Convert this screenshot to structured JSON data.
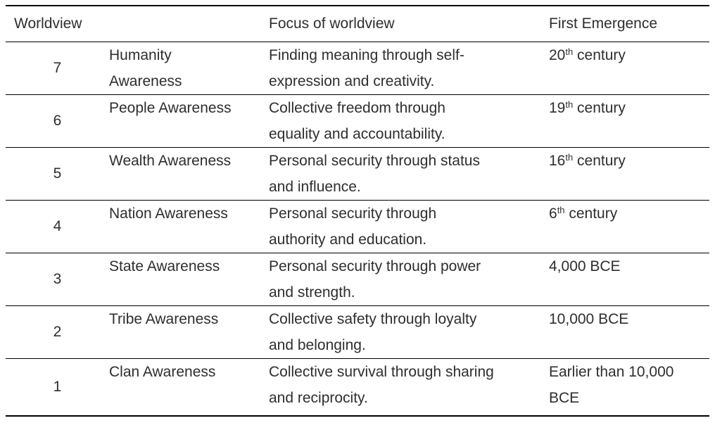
{
  "table": {
    "header": {
      "worldview": "Worldview",
      "focus": "Focus of worldview",
      "emergence": "First Emergence"
    },
    "rows": [
      {
        "level": "7",
        "name_line1": "Humanity",
        "name_line2": "Awareness",
        "focus_line1": "Finding meaning through self-",
        "focus_line2": "expression and creativity.",
        "emergence_pre": "20",
        "emergence_sup": "th",
        "emergence_post": " century",
        "emergence_line2": ""
      },
      {
        "level": "6",
        "name_line1": "People Awareness",
        "name_line2": "",
        "focus_line1": "Collective freedom through",
        "focus_line2": "equality and accountability.",
        "emergence_pre": "19",
        "emergence_sup": "th",
        "emergence_post": " century",
        "emergence_line2": ""
      },
      {
        "level": "5",
        "name_line1": "Wealth Awareness",
        "name_line2": "",
        "focus_line1": "Personal security through status",
        "focus_line2": "and influence.",
        "emergence_pre": "16",
        "emergence_sup": "th",
        "emergence_post": " century",
        "emergence_line2": ""
      },
      {
        "level": "4",
        "name_line1": "Nation Awareness",
        "name_line2": "",
        "focus_line1": "Personal security through",
        "focus_line2": "authority and education.",
        "emergence_pre": "6",
        "emergence_sup": "th",
        "emergence_post": " century",
        "emergence_line2": ""
      },
      {
        "level": "3",
        "name_line1": "State Awareness",
        "name_line2": "",
        "focus_line1": "Personal security through power",
        "focus_line2": "and strength.",
        "emergence_pre": "4,000 BCE",
        "emergence_sup": "",
        "emergence_post": "",
        "emergence_line2": ""
      },
      {
        "level": "2",
        "name_line1": "Tribe Awareness",
        "name_line2": "",
        "focus_line1": "Collective safety through loyalty",
        "focus_line2": "and belonging.",
        "emergence_pre": "10,000 BCE",
        "emergence_sup": "",
        "emergence_post": "",
        "emergence_line2": ""
      },
      {
        "level": "1",
        "name_line1": "Clan Awareness",
        "name_line2": "",
        "focus_line1": "Collective survival through sharing",
        "focus_line2": "and reciprocity.",
        "emergence_pre": "Earlier than 10,000",
        "emergence_sup": "",
        "emergence_post": "",
        "emergence_line2": "BCE"
      }
    ],
    "colors": {
      "text": "#2e2e2e",
      "border": "#000000",
      "background": "#ffffff"
    }
  }
}
